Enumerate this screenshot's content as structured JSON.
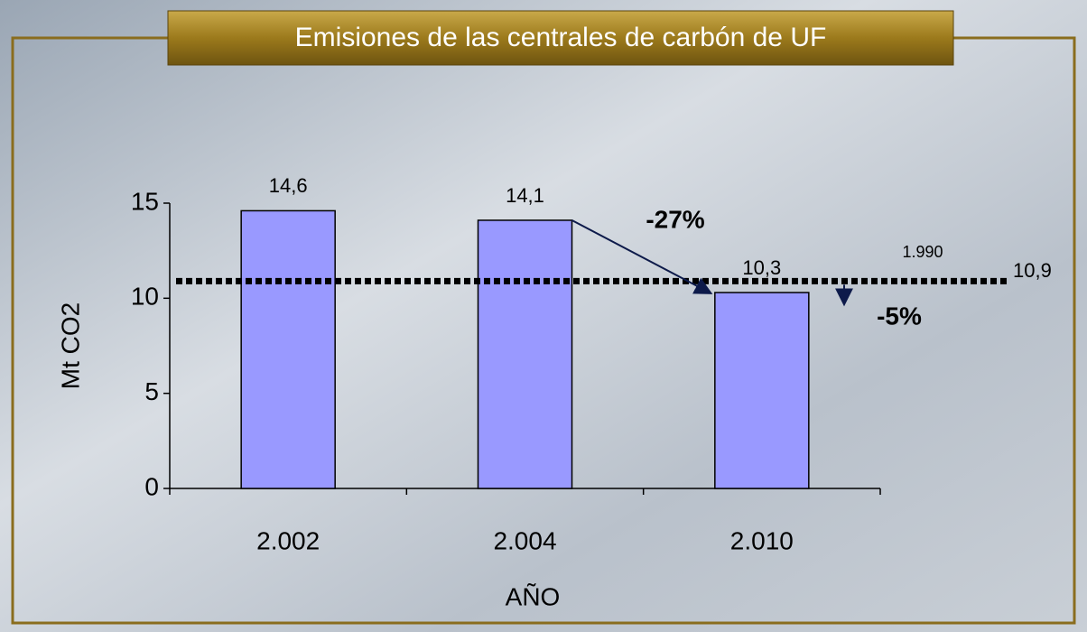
{
  "chart_data": {
    "type": "bar",
    "title": "Emisiones de las centrales de carbón de UF",
    "x_label": "AÑO",
    "y_label": "Mt CO2",
    "categories": [
      "2.002",
      "2.004",
      "2.010"
    ],
    "values": [
      14.6,
      14.1,
      10.3
    ],
    "value_labels": [
      "14,6",
      "14,1",
      "10,3"
    ],
    "color": "#9999ff",
    "ylim": [
      0,
      15
    ],
    "yticks": [
      0,
      5,
      10,
      15
    ],
    "reference_line": {
      "name": "1.990",
      "value": 10.9,
      "value_label": "10,9"
    },
    "annotations": [
      "-27%",
      "-5%"
    ]
  }
}
